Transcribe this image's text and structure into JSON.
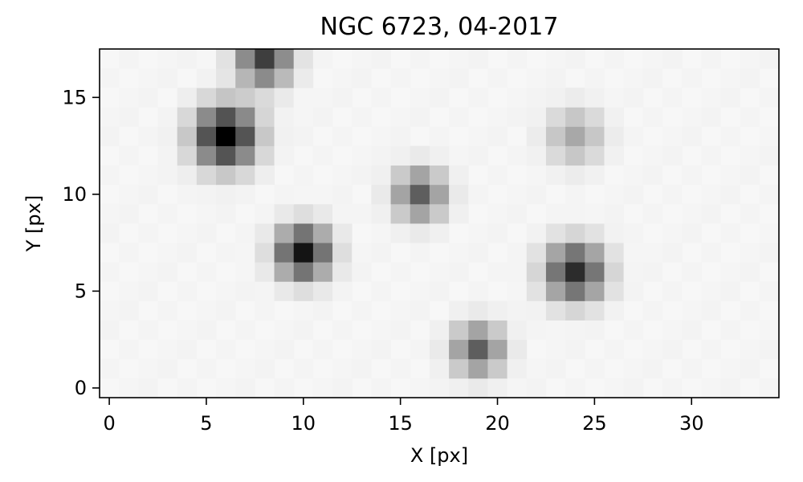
{
  "chart_data": {
    "type": "heatmap",
    "title": "NGC 6723, 04-2017",
    "xlabel": "X [px]",
    "ylabel": "Y [px]",
    "xlim": [
      -0.5,
      34.5
    ],
    "ylim": [
      -0.5,
      17.5
    ],
    "x_ticks": [
      0,
      5,
      10,
      15,
      20,
      25,
      30
    ],
    "y_ticks": [
      0,
      5,
      10,
      15
    ],
    "grid": false,
    "colormap": "gray_r",
    "background_color": "#f7f7f7",
    "frame_color": "#000000",
    "sources": [
      {
        "x": 6,
        "y": 13,
        "peak": 1.0,
        "sigma": 1.1
      },
      {
        "x": 8,
        "y": 17,
        "peak": 0.75,
        "sigma": 0.95
      },
      {
        "x": 10,
        "y": 7,
        "peak": 0.92,
        "sigma": 0.95
      },
      {
        "x": 16,
        "y": 10,
        "peak": 0.62,
        "sigma": 0.9
      },
      {
        "x": 24,
        "y": 13,
        "peak": 0.32,
        "sigma": 1.0
      },
      {
        "x": 24,
        "y": 6,
        "peak": 0.82,
        "sigma": 1.05
      },
      {
        "x": 19,
        "y": 2,
        "peak": 0.62,
        "sigma": 0.9
      }
    ]
  }
}
